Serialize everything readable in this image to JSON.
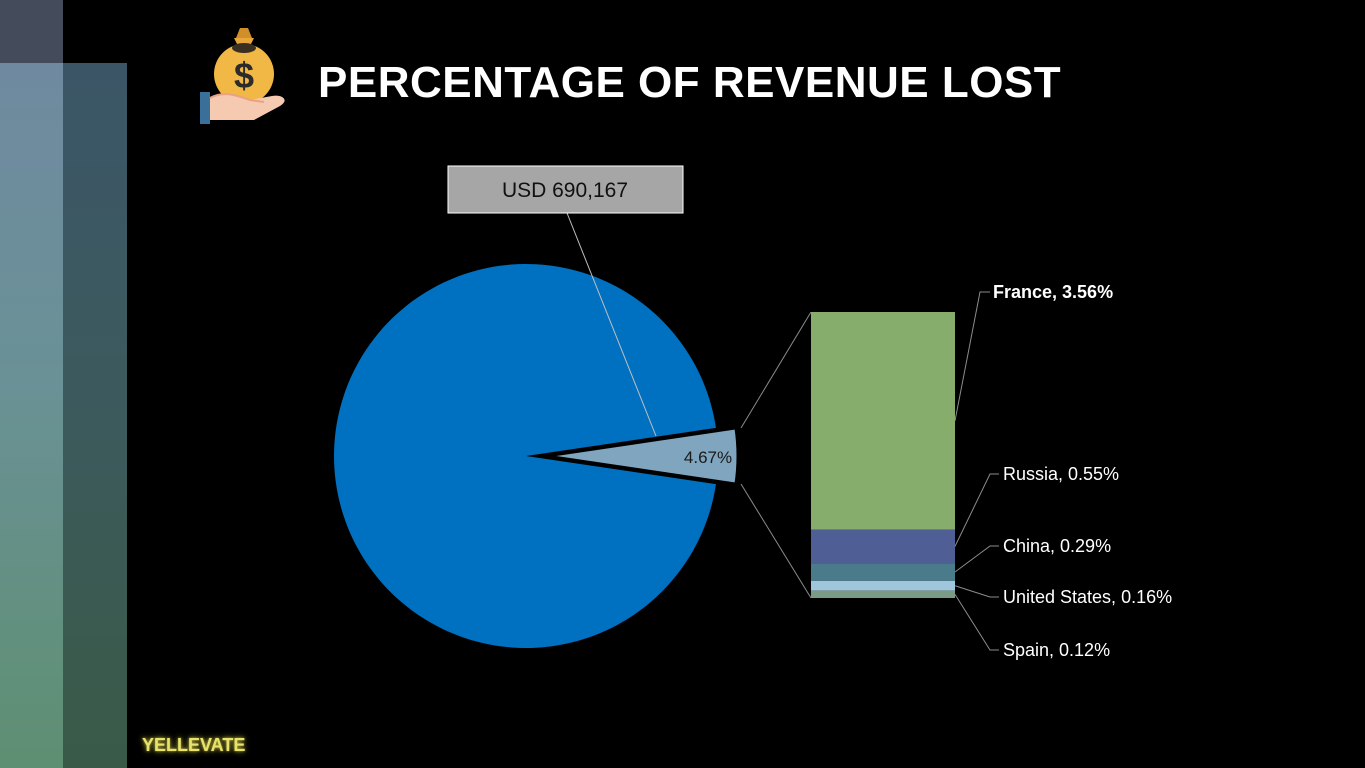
{
  "page": {
    "title": "PERCENTAGE OF REVENUE LOST",
    "brand": "YELLEVATE",
    "icon": "money-bag-in-hand-icon"
  },
  "colors": {
    "main_pie": "#0070c0",
    "exploded_slice": "#7fa5bf",
    "callout_box": "#a6a6a6",
    "france": "#86ad6c",
    "russia": "#4f5f96",
    "china": "#4a7b8a",
    "united_states": "#9fc6da",
    "spain": "#7a9c86",
    "leader_line": "#8c8c8c"
  },
  "chart_data": {
    "type": "pie",
    "subtype": "bar-of-pie",
    "title": "PERCENTAGE OF REVENUE LOST",
    "pie": {
      "slices": [
        {
          "label": "",
          "value": 95.33
        },
        {
          "label": "4.67%",
          "value": 4.67
        }
      ],
      "callout": "USD 690,167"
    },
    "bar": {
      "stack": [
        {
          "label": "France, 3.56%",
          "name": "France",
          "value": 3.56
        },
        {
          "label": "Russia, 0.55%",
          "name": "Russia",
          "value": 0.55
        },
        {
          "label": "China, 0.29%",
          "name": "China",
          "value": 0.29
        },
        {
          "label": "United States, 0.16%",
          "name": "United States",
          "value": 0.16
        },
        {
          "label": "Spain, 0.12%",
          "name": "Spain",
          "value": 0.12
        }
      ]
    }
  }
}
